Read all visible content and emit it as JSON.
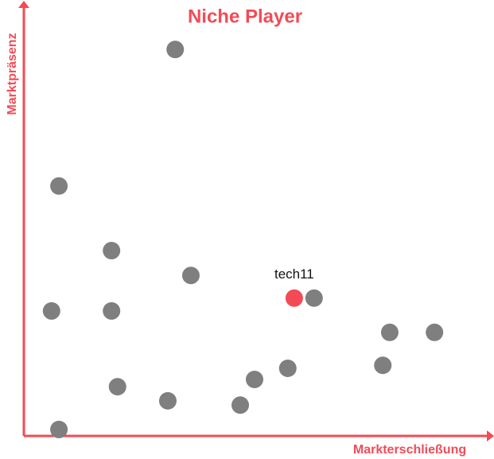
{
  "chart_data": {
    "type": "scatter",
    "title": "Niche Player",
    "xlabel": "Markterschließung",
    "ylabel": "Marktpräsenz",
    "axis_color": "#f24b56",
    "xlim": [
      0,
      100
    ],
    "ylim": [
      0,
      100
    ],
    "series": [
      {
        "color": "#7f7f7f",
        "x": [
          32.8,
          7.6,
          19.0,
          36.2,
          6.0,
          19.0,
          62.9,
          79.3,
          89.0,
          77.8,
          57.2,
          50.0,
          20.3,
          31.2,
          46.9,
          7.6
        ],
        "y": [
          90.3,
          58.4,
          43.3,
          37.5,
          29.2,
          29.2,
          32.2,
          24.2,
          24.2,
          16.5,
          15.8,
          13.2,
          11.5,
          8.2,
          7.2,
          1.5
        ]
      },
      {
        "name": "tech11",
        "color": "#f24b56",
        "x": [
          58.6
        ],
        "y": [
          32.2
        ]
      }
    ]
  }
}
